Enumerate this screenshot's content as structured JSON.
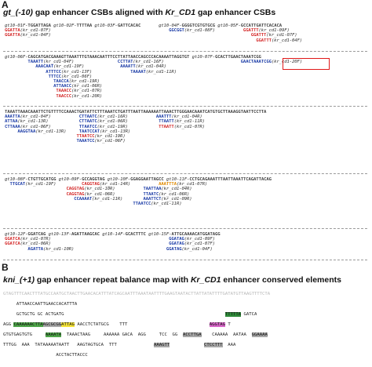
{
  "panel_a": {
    "letter": "A",
    "title_prefix": "gt_(-10)",
    "title_mid": " gap enhancer CSBs aligned with ",
    "title_gene": "Kr_CD1",
    "title_suffix": "  gap enhancer CSBs",
    "blocks": [
      {
        "lines": [
          [
            {
              "t": "gt10-01F-",
              "c": "it"
            },
            {
              "t": "TGGATTAGA ",
              "c": "b"
            },
            {
              "t": "gt10-02F-",
              "c": "it"
            },
            {
              "t": "TTTTAA ",
              "c": "b"
            },
            {
              "t": "gt10-03F-",
              "c": "it"
            },
            {
              "t": "GATTCACAC       ",
              "c": "b"
            },
            {
              "t": "gt10-04F-",
              "c": "it"
            },
            {
              "t": "GGGGTCGTGTGCG ",
              "c": "b"
            },
            {
              "t": "gt10-05F-",
              "c": "it"
            },
            {
              "t": "GCCATTGATTCACACA",
              "c": "b"
            }
          ],
          [
            {
              "t": "GGATTA",
              "c": "red"
            },
            {
              "t": "(kr_cd1-07F)                                              ",
              "c": "it"
            },
            {
              "t": "GGCGGT",
              "c": "blue"
            },
            {
              "t": "(kr_cd1-08F)           ",
              "c": "it"
            },
            {
              "t": "GGATTT",
              "c": "red"
            },
            {
              "t": "(kr_cd1-09F)",
              "c": "it"
            }
          ],
          [
            {
              "t": "GGATTA",
              "c": "red"
            },
            {
              "t": "(kr_cd1-04F)                                                                              ",
              "c": "it"
            },
            {
              "t": "GGATTT",
              "c": "red"
            },
            {
              "t": "(kr_cd1-07F)",
              "c": "it"
            }
          ],
          [
            {
              "t": "                                                                                                  ",
              "c": "it"
            },
            {
              "t": "GGATTT",
              "c": "red"
            },
            {
              "t": "(kr_cd1-04F)",
              "c": "it"
            }
          ]
        ]
      },
      {
        "lines": [
          [
            {
              "t": "gt10-06F-",
              "c": "it"
            },
            {
              "t": "CAGCATGACGAAAGTTAAATTTGTAAACAATTTCCTTATTAACCAGCCCACAAAATTAGGTGT ",
              "c": "b"
            },
            {
              "t": "gt10-07F-",
              "c": "it"
            },
            {
              "t": "GCACTTGAACTAAATCGG",
              "c": "b"
            }
          ],
          [
            {
              "t": "         ",
              "c": "it"
            },
            {
              "t": "TAAATT",
              "c": "blue"
            },
            {
              "t": "(kr_cd1-04F)                 ",
              "c": "it"
            },
            {
              "t": "CCTTAT",
              "c": "blue"
            },
            {
              "t": "(kr_cd1-16F)                              ",
              "c": "it"
            },
            {
              "t": "GAACTAAATCGG",
              "c": "blue"
            },
            {
              "t": "(kr_cd1-20F)",
              "c": "it"
            }
          ],
          [
            {
              "t": "            ",
              "c": "it"
            },
            {
              "t": "AAACAAT",
              "c": "blue"
            },
            {
              "t": "(kr_cd1-19F)              ",
              "c": "it"
            },
            {
              "t": "AAAATT",
              "c": "blue"
            },
            {
              "t": "(kr_cd1-04R)",
              "c": "it"
            }
          ],
          [
            {
              "t": "                ",
              "c": "it"
            },
            {
              "t": "ATTTCC",
              "c": "blue"
            },
            {
              "t": "(kr_cd1-13F)               ",
              "c": "it"
            },
            {
              "t": "TAAAAT",
              "c": "blue"
            },
            {
              "t": "(kr_cd1-11R)",
              "c": "it"
            }
          ],
          [
            {
              "t": "                 ",
              "c": "it"
            },
            {
              "t": "TTTCC",
              "c": "blue"
            },
            {
              "t": "(kr_cd1-06F)",
              "c": "it"
            }
          ],
          [
            {
              "t": "                   ",
              "c": "it"
            },
            {
              "t": "TAACCA",
              "c": "blue"
            },
            {
              "t": "(kr_cd1-19R)",
              "c": "it"
            }
          ],
          [
            {
              "t": "                   ",
              "c": "it"
            },
            {
              "t": "ATTAACC",
              "c": "blue"
            },
            {
              "t": "(kr_cd1-06R)",
              "c": "it"
            }
          ],
          [
            {
              "t": "                    ",
              "c": "it"
            },
            {
              "t": "TAAACC",
              "c": "red"
            },
            {
              "t": "(kr_cd1-07R)",
              "c": "it"
            }
          ],
          [
            {
              "t": "                    ",
              "c": "it"
            },
            {
              "t": "TAACCC",
              "c": "red"
            },
            {
              "t": "(kr_cd1-20R)",
              "c": "it"
            }
          ]
        ]
      },
      {
        "lines": [
          [
            {
              "t": "TAAATTAAACAAATTCTGTTTTCCAAACTGATATTCTTTAAATCTGATTTAATTAAAAAATTAAACTTGGGAACAAATCATGTGCTTAAAGGTAATTCCTTA",
              "c": "b"
            }
          ],
          [
            {
              "t": "AAATTA",
              "c": "blue"
            },
            {
              "t": "(kr_cd1-04F)           ",
              "c": "it"
            },
            {
              "t": "CTTAATC",
              "c": "blue"
            },
            {
              "t": "(kr_cd1-16R)           ",
              "c": "it"
            },
            {
              "t": "AAATTT",
              "c": "blue"
            },
            {
              "t": "(kr_cd1-04R)",
              "c": "it"
            }
          ],
          [
            {
              "t": "ATTAA",
              "c": "blue"
            },
            {
              "t": "(kr_cd1-13R)            ",
              "c": "it"
            },
            {
              "t": "CTTAATC",
              "c": "blue"
            },
            {
              "t": "(kr_cd1-06R)            ",
              "c": "it"
            },
            {
              "t": "TTAATT",
              "c": "blue"
            },
            {
              "t": "(kr_cd1-11R)",
              "c": "it"
            }
          ],
          [
            {
              "t": "CTTAAA",
              "c": "blue"
            },
            {
              "t": "(kr_cd1-06F)           ",
              "c": "it"
            },
            {
              "t": "TTAATCC",
              "c": "blue"
            },
            {
              "t": "(kr_cd1-19R)            ",
              "c": "it"
            },
            {
              "t": "TTAATT",
              "c": "red"
            },
            {
              "t": "(kr_cd1-07R)",
              "c": "it"
            }
          ],
          [
            {
              "t": "     ",
              "c": "it"
            },
            {
              "t": "AAGGTAA",
              "c": "blue"
            },
            {
              "t": "(kr_cd1-13R)     ",
              "c": "it"
            },
            {
              "t": "TAATCCAT",
              "c": "blue"
            },
            {
              "t": "(kr_cd1-13R)",
              "c": "it"
            }
          ],
          [
            {
              "t": "                            ",
              "c": "it"
            },
            {
              "t": "TTAATCC",
              "c": "red"
            },
            {
              "t": "(kr_cd1-19R)",
              "c": "it"
            }
          ],
          [
            {
              "t": "                            ",
              "c": "it"
            },
            {
              "t": "TAAATCC",
              "c": "blue"
            },
            {
              "t": "(kr_cd1-06F)",
              "c": "it"
            }
          ]
        ]
      },
      {
        "lines": [
          [
            {
              "t": "gt10-08F-",
              "c": "it"
            },
            {
              "t": "CTGTTGCATGG ",
              "c": "b"
            },
            {
              "t": "gt10-09F-",
              "c": "it"
            },
            {
              "t": "GCCAGGTAG ",
              "c": "b"
            },
            {
              "t": "gt10-10F-",
              "c": "it"
            },
            {
              "t": "GGAGGAATTAGCC ",
              "c": "b"
            },
            {
              "t": "gt10-11F-",
              "c": "it"
            },
            {
              "t": "CCTGCAGAAATTTAATTAAATTCAGATTACAG",
              "c": "b"
            }
          ],
          [
            {
              "t": "  ",
              "c": "it"
            },
            {
              "t": "TTGCAT",
              "c": "blue"
            },
            {
              "t": "(kr_cd1-19F)          ",
              "c": "it"
            },
            {
              "t": "CAGGTAG",
              "c": "red"
            },
            {
              "t": "(kr_cd1-14R)           ",
              "c": "it"
            },
            {
              "t": "AAATTTA",
              "c": "orange"
            },
            {
              "t": "(kr_cd1-07R)",
              "c": "it"
            }
          ],
          [
            {
              "t": "                        ",
              "c": "it"
            },
            {
              "t": "CAGGTAG",
              "c": "red"
            },
            {
              "t": "(kr_cd1-10R)           ",
              "c": "it"
            },
            {
              "t": "TAATTAA",
              "c": "blue"
            },
            {
              "t": "(kr_cd1-04R)",
              "c": "it"
            }
          ],
          [
            {
              "t": "                        ",
              "c": "it"
            },
            {
              "t": "CAGGTAG",
              "c": "red"
            },
            {
              "t": "(kr_cd1-06R)           ",
              "c": "it"
            },
            {
              "t": "TTAATC",
              "c": "blue"
            },
            {
              "t": "(kr_cd1-06R)",
              "c": "it"
            }
          ],
          [
            {
              "t": "                           ",
              "c": "it"
            },
            {
              "t": "CCAAAAT",
              "c": "blue"
            },
            {
              "t": "(kr_cd1-11R)        ",
              "c": "it"
            },
            {
              "t": "AAATTCT",
              "c": "blue"
            },
            {
              "t": "(kr_cd1-09R)",
              "c": "it"
            }
          ],
          [
            {
              "t": "                                                  ",
              "c": "it"
            },
            {
              "t": "TTAATCC",
              "c": "blue"
            },
            {
              "t": "(kr_cd1-11R)",
              "c": "it"
            }
          ]
        ]
      },
      {
        "lines": [
          [
            {
              "t": "gt10-12F-",
              "c": "it"
            },
            {
              "t": "GGATCAG ",
              "c": "b"
            },
            {
              "t": "gt10-13F-",
              "c": "it"
            },
            {
              "t": "AGATTAAGCAC ",
              "c": "b"
            },
            {
              "t": "gt10-14F-",
              "c": "it"
            },
            {
              "t": "GCACTTTC ",
              "c": "b"
            },
            {
              "t": "gt10-15F-",
              "c": "it"
            },
            {
              "t": "ATTGCAAAACATGGATAGG",
              "c": "b"
            }
          ],
          [
            {
              "t": "GGATCA",
              "c": "red"
            },
            {
              "t": "(kr_cd1-07R)                                              ",
              "c": "it"
            },
            {
              "t": "GGATAG",
              "c": "blue"
            },
            {
              "t": "(kr_cd1-09F)",
              "c": "it"
            }
          ],
          [
            {
              "t": "GGATCA",
              "c": "red"
            },
            {
              "t": "(kr_cd1-06R)                                              ",
              "c": "it"
            },
            {
              "t": "GGATAG",
              "c": "blue"
            },
            {
              "t": "(kr_cd1-07F)",
              "c": "it"
            }
          ],
          [
            {
              "t": "         ",
              "c": "it"
            },
            {
              "t": "AGATTA",
              "c": "blue"
            },
            {
              "t": "(kr_cd1-10R)                                    ",
              "c": "it"
            },
            {
              "t": "GGATAG",
              "c": "blue"
            },
            {
              "t": "(kr_cd1-04F)",
              "c": "it"
            }
          ]
        ]
      }
    ]
  },
  "panel_b": {
    "letter": "B",
    "title_prefix": "kni_(+1)",
    "title_mid": " gap enhancer repeat balance map with ",
    "title_gene": "Kr_CD1",
    "title_suffix": "  enhancer conserved elements",
    "rows": [
      [
        {
          "t": "GTAGTTTCAACTTTATGCCAATGCTAACTTGAACACATTTATCAGCAATTTAAATAATTTTGAAGTAATACTTATTATATTTTGATATGTTAAGTTTTCTA",
          "c": "faint"
        }
      ],
      [
        {
          "t": "     ATTAACCAATTGAACCACATTTA",
          "c": "n"
        }
      ],
      [
        {
          "t": "     GCTGCTG GC ACTGATG",
          "c": "n"
        },
        {
          "t": "                                                             ",
          "c": "faint"
        },
        {
          "t": "TTTTTA",
          "c": "hl-dgreen"
        },
        {
          "t": " GATCA",
          "c": "n"
        }
      ],
      [
        {
          "t": "AGG ",
          "c": "n"
        },
        {
          "t": "CAAAAAAC",
          "c": "hl-green"
        },
        {
          "t": "TTA",
          "c": "hl-green"
        },
        {
          "t": "AGCGCGG",
          "c": "hl-gray"
        },
        {
          "t": "ATTAG",
          "c": "hl-yellow"
        },
        {
          "t": " AACCTCTATGCG    TTT",
          "c": "n"
        },
        {
          "t": "                               ",
          "c": "faint"
        },
        {
          "t": "AGGTAG",
          "c": "hl-pink"
        },
        {
          "t": " T",
          "c": "n"
        }
      ],
      [
        {
          "t": "GTGTGAGTGTG     ",
          "c": "n"
        },
        {
          "t": "AAAATA",
          "c": "hl-green"
        },
        {
          "t": "  TAAACTAAG     AAAAAA GACA  AGG     TCC  GG  ",
          "c": "n"
        },
        {
          "t": "ACCTTGA",
          "c": "hl-gray"
        },
        {
          "t": "    CAAAAA  AATAA  ",
          "c": "n"
        },
        {
          "t": "GGAAAA",
          "c": "hl-gray"
        }
      ],
      [
        {
          "t": "TTTGG  AAA  TATAAAAATAATT   AAGTAGTGCA  TTT              ",
          "c": "n"
        },
        {
          "t": "AAAGTT",
          "c": "hl-gray"
        },
        {
          "t": "             ",
          "c": "n"
        },
        {
          "t": "CTCCTTT",
          "c": "hl-gray"
        },
        {
          "t": "  AAA",
          "c": "n"
        }
      ],
      [
        {
          "t": "                    ACCTACTTACCC",
          "c": "n"
        }
      ]
    ]
  }
}
